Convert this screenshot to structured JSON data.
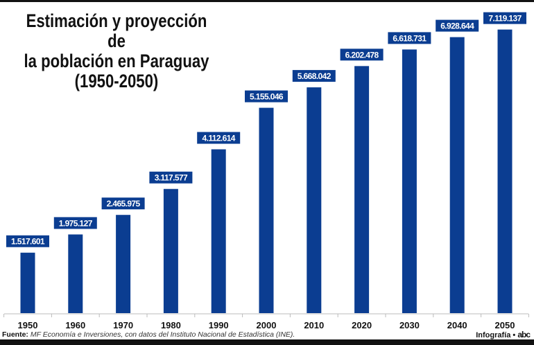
{
  "title": "Estimación y proyección de\nla población  en Paraguay\n(1950-2050)",
  "chart_data": {
    "type": "bar",
    "title": "Estimación y proyección de la población en Paraguay (1950-2050)",
    "categories": [
      "1950",
      "1960",
      "1970",
      "1980",
      "1990",
      "2000",
      "2010",
      "2020",
      "2030",
      "2040",
      "2050"
    ],
    "values": [
      1517601,
      1975127,
      2465975,
      3117577,
      4112614,
      5155046,
      5668042,
      6202478,
      6618731,
      6928644,
      7119137
    ],
    "data_labels": [
      "1.517.601",
      "1.975.127",
      "2.465.975",
      "3.117.577",
      "4.112.614",
      "5.155.046",
      "5.668.042",
      "6.202.478",
      "6.618.731",
      "6.928.644",
      "7.119.137"
    ],
    "xlabel": "",
    "ylabel": "",
    "ylim": [
      0,
      7500000
    ],
    "grid": false,
    "bar_color": "#0b3d91",
    "label_box_color": "#0b3d91"
  },
  "source": {
    "prefix": "Fuente:",
    "text": "MF Economía e Inversiones, con datos del Instituto Nacional de Estadística (INE)."
  },
  "credit": {
    "text": "Infografía •",
    "logo": "abc"
  }
}
